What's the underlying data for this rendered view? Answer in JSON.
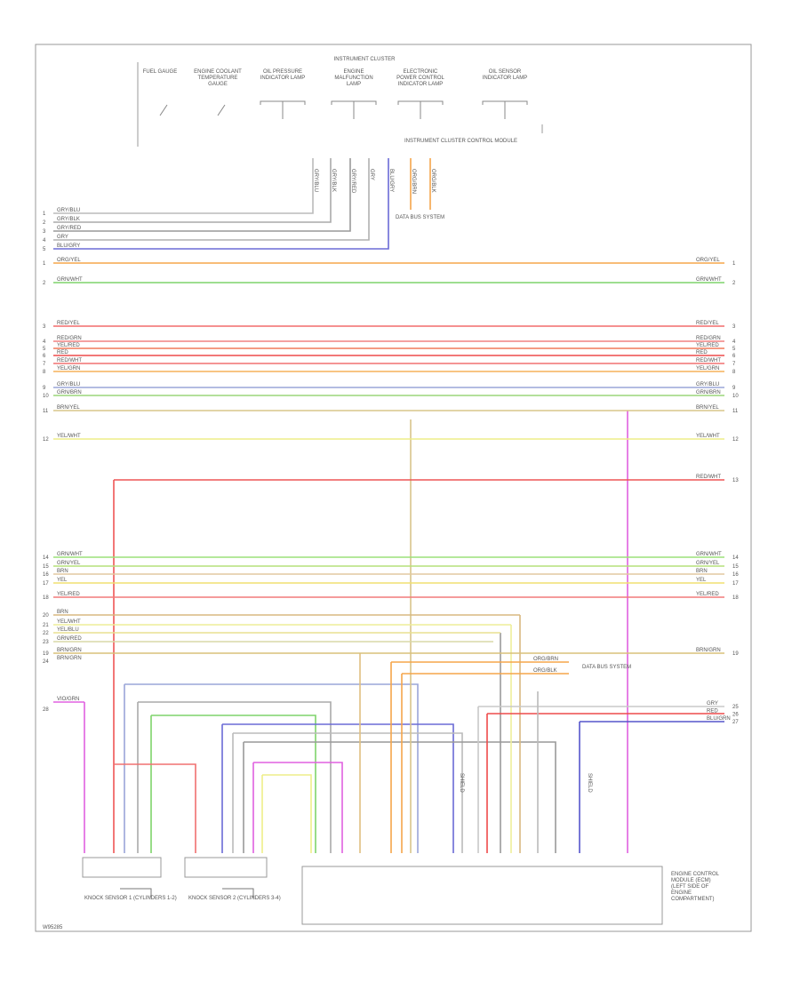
{
  "header": {
    "title": "INSTRUMENT CLUSTER",
    "subtitle": "INSTRUMENT CLUSTER CONTROL MODULE",
    "figure_id": "W95285"
  },
  "cluster_items": [
    {
      "label": "FUEL GAUGE"
    },
    {
      "label": "ENGINE COOLANT TEMPERATURE GAUGE"
    },
    {
      "label": "OIL PRESSURE INDICATOR LAMP"
    },
    {
      "label": "ENGINE MALFUNCTION LAMP"
    },
    {
      "label": "ELECTRONIC POWER CONTROL INDICATOR LAMP"
    },
    {
      "label": "OIL SENSOR INDICATOR LAMP"
    }
  ],
  "cluster_wires": [
    {
      "label": "GRY/BLU",
      "pin": "1",
      "color": "#bbbbbb"
    },
    {
      "label": "GRY/BLK",
      "pin": "2",
      "color": "#aaaaaa"
    },
    {
      "label": "GRY/RED",
      "pin": "3",
      "color": "#999999"
    },
    {
      "label": "GRY",
      "pin": "4",
      "color": "#b0b0b0"
    },
    {
      "label": "BLU/GRY",
      "pin": "5",
      "color": "#6b6bd6"
    }
  ],
  "data_bus": {
    "label": "DATA BUS SYSTEM",
    "wires": [
      "ORG/BRN",
      "ORG/BLK"
    ]
  },
  "wires": [
    {
      "label": "ORG/YEL",
      "pin": "1",
      "color": "#f5a54a"
    },
    {
      "label": "GRN/WHT",
      "pin": "2",
      "color": "#7ed36b"
    },
    {
      "label": "RED/YEL",
      "pin": "3",
      "color": "#f26b6b"
    },
    {
      "label": "RED/GRN",
      "pin": "4",
      "color": "#f08080"
    },
    {
      "label": "YEL/RED",
      "pin": "5",
      "color": "#f07a5a"
    },
    {
      "label": "RED",
      "pin": "6",
      "color": "#ee4b4b"
    },
    {
      "label": "RED/WHT",
      "pin": "7",
      "color": "#f07070"
    },
    {
      "label": "YEL/GRN",
      "pin": "8",
      "color": "#f5b25a"
    },
    {
      "label": "GRY/BLU",
      "pin": "9",
      "color": "#9aa5d8"
    },
    {
      "label": "GRN/BRN",
      "pin": "10",
      "color": "#9bd67a"
    },
    {
      "label": "BRN/YEL",
      "pin": "11",
      "color": "#d8c58a"
    },
    {
      "label": "YEL/WHT",
      "pin": "12",
      "color": "#eeee88"
    },
    {
      "label": "RED/WHT",
      "pin": "13",
      "color": "#ee5555"
    },
    {
      "label": "GRN/WHT",
      "pin": "14",
      "color": "#9be07a"
    },
    {
      "label": "GRN/YEL",
      "pin": "15",
      "color": "#b6e07a"
    },
    {
      "label": "BRN",
      "pin": "16",
      "color": "#e2c9a0"
    },
    {
      "label": "YEL",
      "pin": "17",
      "color": "#f0e070"
    },
    {
      "label": "YEL/RED",
      "pin": "18",
      "color": "#f27a7a"
    },
    {
      "label": "BRN/GRN",
      "pin": "19",
      "color": "#d8c07a"
    }
  ],
  "signal_wires": [
    {
      "label": "BRN",
      "pin": "20",
      "color": "#d8b880"
    },
    {
      "label": "YEL/WHT",
      "pin": "21",
      "color": "#eeee99"
    },
    {
      "label": "YEL/BLU",
      "pin": "22",
      "color": "#e8e090"
    },
    {
      "label": "GRN/RED",
      "pin": "23",
      "color": "#d8d8a8"
    },
    {
      "label": "BRN/GRN",
      "pin": "24",
      "color": "#e0c080"
    }
  ],
  "fuel_note": {
    "wires": [
      "ORG/BRN",
      "ORG/BLK"
    ],
    "label": "DATA BUS SYSTEM"
  },
  "right_wires": [
    {
      "label": "GRY",
      "pin": "25",
      "color": "#c8c8c8"
    },
    {
      "label": "RED",
      "pin": "26",
      "color": "#ee4b4b"
    },
    {
      "label": "BLU/GRN",
      "pin": "27",
      "color": "#5555cc"
    }
  ],
  "left_wire": {
    "label": "VIO/GRN",
    "pin": "28",
    "color": "#e060e0"
  },
  "components": [
    {
      "label": "KNOCK SENSOR 1 (CYLINDERS 1-2)"
    },
    {
      "label": "KNOCK SENSOR 2 (CYLINDERS 3-4)"
    },
    {
      "label": "ENGINE CONTROL MODULE (ECM) (LEFT SIDE OF ENGINE COMPARTMENT)"
    }
  ],
  "shield_labels": [
    "SHIELD",
    "SHIELD"
  ]
}
